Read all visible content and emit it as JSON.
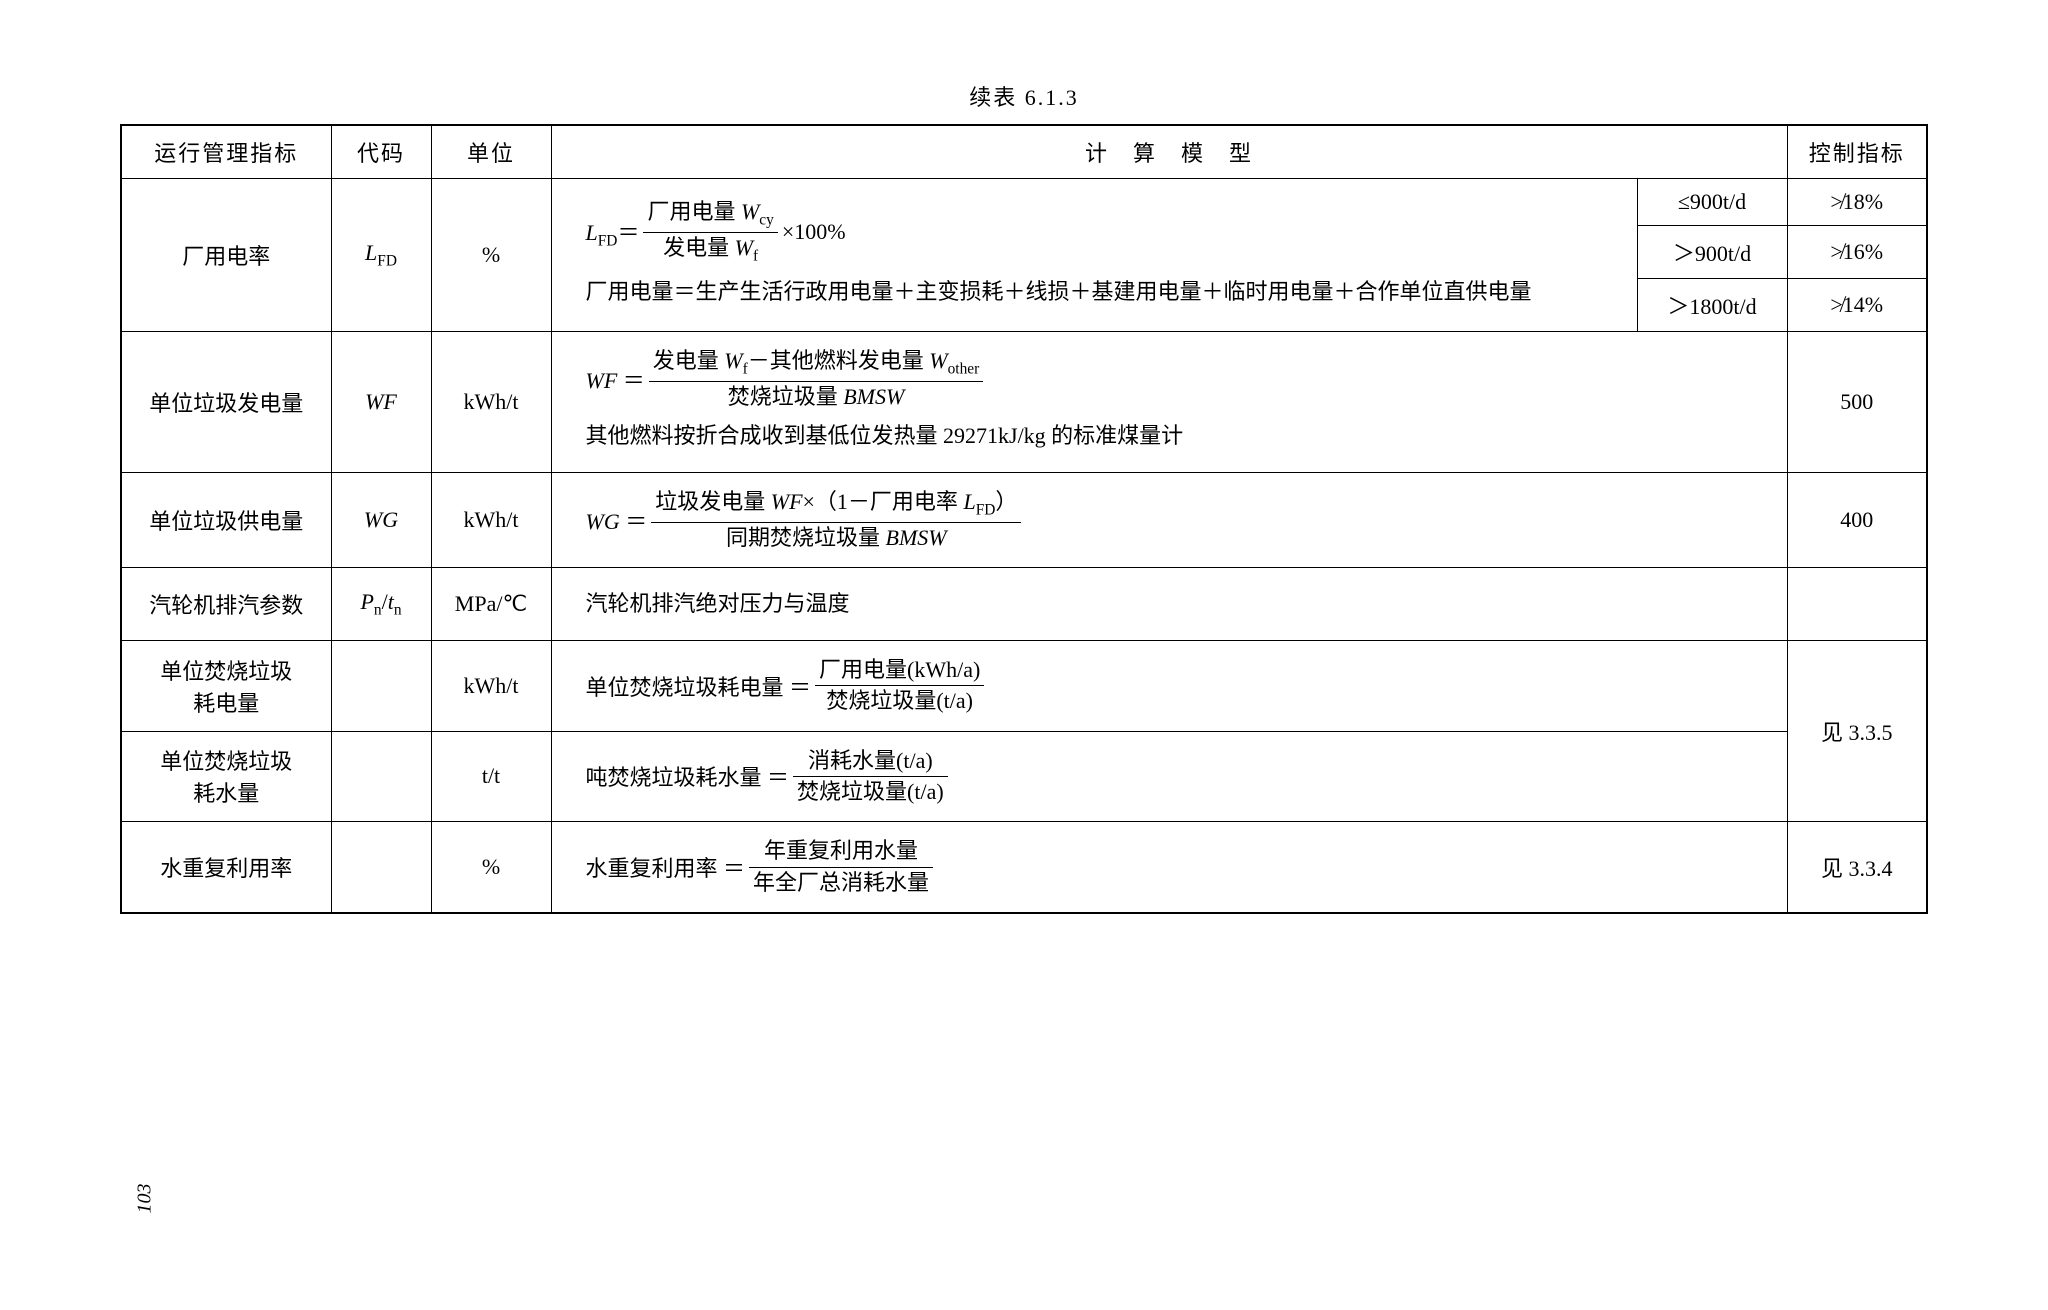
{
  "title": "续表 6.1.3",
  "headers": {
    "indicator": "运行管理指标",
    "code": "代码",
    "unit": "单位",
    "model": "计　算　模　型",
    "control": "控制指标"
  },
  "rows": {
    "r1": {
      "indicator": "厂用电率",
      "code_html": "<span class='italic'>L</span><span class='sub'>FD</span>",
      "unit": "%",
      "formula_lhs": "<span class='italic'>L</span><span class='sub'>FD</span>＝",
      "formula_num": "厂用电量 <span class='italic'>W</span><span class='sub'>cy</span>",
      "formula_den": "发电量 <span class='italic'>W</span><span class='sub'>f</span>",
      "formula_tail": "×100%",
      "desc": "厂用电量＝生产生活行政用电量＋主变损耗＋线损＋基建用电量＋临时用电量＋合作单位直供电量",
      "tier1_c": "≤900t/d",
      "tier1_v": "≯18%",
      "tier2_c": "＞900t/d",
      "tier2_v": "≯16%",
      "tier3_c": "＞1800t/d",
      "tier3_v": "≯14%"
    },
    "r2": {
      "indicator": "单位垃圾发电量",
      "code": "WF",
      "unit": "kWh/t",
      "formula_lhs": "<span class='italic'>WF</span> ＝ ",
      "formula_num": "发电量 <span class='italic'>W</span><span class='sub'>f</span>－其他燃料发电量 <span class='italic'>W</span><span class='sub'>other</span>",
      "formula_den": "焚烧垃圾量 <span class='italic'>BMSW</span>",
      "desc": "其他燃料按折合成收到基低位发热量 29271kJ/kg 的标准煤量计",
      "control": "500"
    },
    "r3": {
      "indicator": "单位垃圾供电量",
      "code": "WG",
      "unit": "kWh/t",
      "formula_lhs": "<span class='italic'>WG</span> ＝ ",
      "formula_num": "垃圾发电量 <span class='italic'>WF</span>×（1－厂用电率 <span class='italic'>L</span><span class='sub'>FD</span>）",
      "formula_den": "同期焚烧垃圾量 <span class='italic'>BMSW</span>",
      "control": "400"
    },
    "r4": {
      "indicator": "汽轮机排汽参数",
      "code_html": "<span class='italic'>P</span><span class='sub'>n</span>/<span class='italic'>t</span><span class='sub'>n</span>",
      "unit": "MPa/℃",
      "desc": "汽轮机排汽绝对压力与温度",
      "control": ""
    },
    "r5": {
      "indicator_l1": "单位焚烧垃圾",
      "indicator_l2": "耗电量",
      "code": "",
      "unit": "kWh/t",
      "formula_lhs": "单位焚烧垃圾耗电量 ＝ ",
      "formula_num": "厂用电量(kWh/a)",
      "formula_den": "焚烧垃圾量(t/a)"
    },
    "r6": {
      "indicator_l1": "单位焚烧垃圾",
      "indicator_l2": "耗水量",
      "code": "",
      "unit": "t/t",
      "formula_lhs": "吨焚烧垃圾耗水量 ＝ ",
      "formula_num": "消耗水量(t/a)",
      "formula_den": "焚烧垃圾量(t/a)",
      "control_shared": "见 3.3.5"
    },
    "r7": {
      "indicator": "水重复利用率",
      "code": "",
      "unit": "%",
      "formula_lhs": "水重复利用率 ＝ ",
      "formula_num": "年重复利用水量",
      "formula_den": "年全厂总消耗水量",
      "control": "见 3.3.4"
    }
  },
  "page_number": "103"
}
